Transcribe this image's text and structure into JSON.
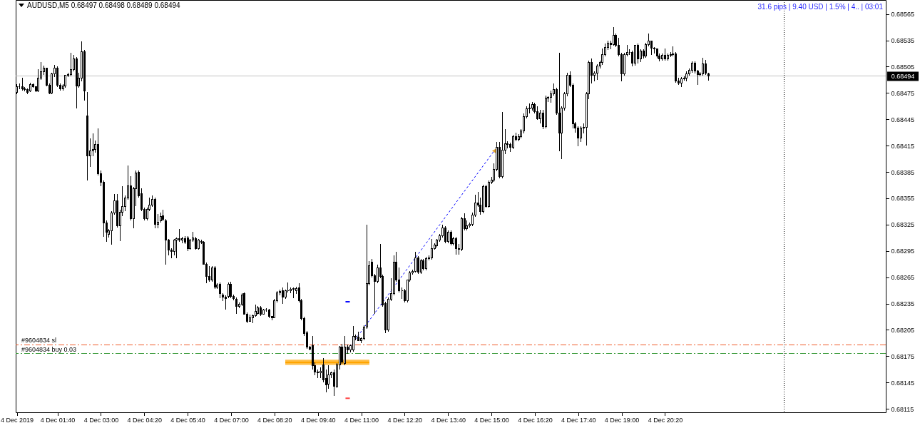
{
  "chart_data": {
    "type": "candlestick",
    "title": "AUDUSD,M5 0.68497 0.68498 0.68489 0.68494",
    "color": "#000000",
    "annotations": [
      "31.6 pips | 9.40 USD | 1.5% | 4.. | 03:01"
    ],
    "x": [
      "2019-12-04T00:25",
      "2019-12-04T00:30",
      "2019-12-04T00:35",
      "2019-12-04T00:40",
      "2019-12-04T00:45",
      "2019-12-04T00:50",
      "2019-12-04T00:55",
      "2019-12-04T01:00",
      "2019-12-04T01:05",
      "2019-12-04T01:10",
      "2019-12-04T01:15",
      "2019-12-04T01:20",
      "2019-12-04T01:25",
      "2019-12-04T01:30",
      "2019-12-04T01:35",
      "2019-12-04T01:40",
      "2019-12-04T01:45",
      "2019-12-04T01:50",
      "2019-12-04T01:55",
      "2019-12-04T02:00",
      "2019-12-04T02:05",
      "2019-12-04T02:10",
      "2019-12-04T02:15",
      "2019-12-04T02:20",
      "2019-12-04T02:25",
      "2019-12-04T02:30",
      "2019-12-04T02:35",
      "2019-12-04T02:40",
      "2019-12-04T02:45",
      "2019-12-04T02:50",
      "2019-12-04T02:55",
      "2019-12-04T03:00",
      "2019-12-04T03:05",
      "2019-12-04T03:10",
      "2019-12-04T03:15",
      "2019-12-04T03:20",
      "2019-12-04T03:25",
      "2019-12-04T03:30",
      "2019-12-04T03:35",
      "2019-12-04T03:40",
      "2019-12-04T03:45",
      "2019-12-04T03:50",
      "2019-12-04T03:55",
      "2019-12-04T04:00",
      "2019-12-04T04:05",
      "2019-12-04T04:10",
      "2019-12-04T04:15",
      "2019-12-04T04:20",
      "2019-12-04T04:25",
      "2019-12-04T04:30",
      "2019-12-04T04:35",
      "2019-12-04T04:40",
      "2019-12-04T04:45",
      "2019-12-04T04:50",
      "2019-12-04T04:55",
      "2019-12-04T05:00",
      "2019-12-04T05:05",
      "2019-12-04T05:10",
      "2019-12-04T05:15",
      "2019-12-04T05:20",
      "2019-12-04T05:25",
      "2019-12-04T05:30",
      "2019-12-04T05:35",
      "2019-12-04T05:40",
      "2019-12-04T05:45",
      "2019-12-04T05:50",
      "2019-12-04T05:55",
      "2019-12-04T06:00",
      "2019-12-04T06:05",
      "2019-12-04T06:10",
      "2019-12-04T06:15",
      "2019-12-04T06:20",
      "2019-12-04T06:25",
      "2019-12-04T06:30",
      "2019-12-04T06:35",
      "2019-12-04T06:40",
      "2019-12-04T06:45",
      "2019-12-04T06:50",
      "2019-12-04T06:55",
      "2019-12-04T07:00",
      "2019-12-04T07:05",
      "2019-12-04T07:10",
      "2019-12-04T07:15",
      "2019-12-04T07:20",
      "2019-12-04T07:25",
      "2019-12-04T07:30",
      "2019-12-04T07:35",
      "2019-12-04T07:40",
      "2019-12-04T07:45",
      "2019-12-04T07:50",
      "2019-12-04T07:55",
      "2019-12-04T08:00",
      "2019-12-04T08:05",
      "2019-12-04T08:10",
      "2019-12-04T08:15",
      "2019-12-04T08:20",
      "2019-12-04T08:25",
      "2019-12-04T08:30",
      "2019-12-04T08:35",
      "2019-12-04T08:40",
      "2019-12-04T08:45",
      "2019-12-04T08:50",
      "2019-12-04T08:55",
      "2019-12-04T09:00",
      "2019-12-04T09:05",
      "2019-12-04T09:10",
      "2019-12-04T09:15",
      "2019-12-04T09:20",
      "2019-12-04T09:25",
      "2019-12-04T09:30",
      "2019-12-04T09:35",
      "2019-12-04T09:40",
      "2019-12-04T09:45",
      "2019-12-04T09:50",
      "2019-12-04T09:55",
      "2019-12-04T10:00",
      "2019-12-04T10:05",
      "2019-12-04T10:10",
      "2019-12-04T10:15",
      "2019-12-04T10:20",
      "2019-12-04T10:25",
      "2019-12-04T10:30",
      "2019-12-04T10:35",
      "2019-12-04T10:40",
      "2019-12-04T10:45",
      "2019-12-04T10:50",
      "2019-12-04T10:55",
      "2019-12-04T11:00",
      "2019-12-04T11:05",
      "2019-12-04T11:10",
      "2019-12-04T11:15",
      "2019-12-04T11:20",
      "2019-12-04T11:25",
      "2019-12-04T11:30",
      "2019-12-04T11:35",
      "2019-12-04T11:40",
      "2019-12-04T11:45",
      "2019-12-04T11:50",
      "2019-12-04T11:55",
      "2019-12-04T12:00",
      "2019-12-04T12:05",
      "2019-12-04T12:10",
      "2019-12-04T12:15",
      "2019-12-04T12:20",
      "2019-12-04T12:25",
      "2019-12-04T12:30",
      "2019-12-04T12:35",
      "2019-12-04T12:40",
      "2019-12-04T12:45",
      "2019-12-04T12:50",
      "2019-12-04T12:55",
      "2019-12-04T13:00",
      "2019-12-04T13:05",
      "2019-12-04T13:10",
      "2019-12-04T13:15",
      "2019-12-04T13:20",
      "2019-12-04T13:25",
      "2019-12-04T13:30",
      "2019-12-04T13:35",
      "2019-12-04T13:40",
      "2019-12-04T13:45",
      "2019-12-04T13:50",
      "2019-12-04T13:55",
      "2019-12-04T14:00",
      "2019-12-04T14:05",
      "2019-12-04T14:10",
      "2019-12-04T14:15",
      "2019-12-04T14:20",
      "2019-12-04T14:25",
      "2019-12-04T14:30",
      "2019-12-04T14:35",
      "2019-12-04T14:40",
      "2019-12-04T14:45",
      "2019-12-04T14:50",
      "2019-12-04T14:55",
      "2019-12-04T15:00",
      "2019-12-04T15:05",
      "2019-12-04T15:10",
      "2019-12-04T15:15",
      "2019-12-04T15:20",
      "2019-12-04T15:25",
      "2019-12-04T15:30",
      "2019-12-04T15:35",
      "2019-12-04T15:40",
      "2019-12-04T15:45",
      "2019-12-04T15:50",
      "2019-12-04T15:55",
      "2019-12-04T16:00",
      "2019-12-04T16:05",
      "2019-12-04T16:10",
      "2019-12-04T16:15",
      "2019-12-04T16:20",
      "2019-12-04T16:25",
      "2019-12-04T16:30",
      "2019-12-04T16:35",
      "2019-12-04T16:40",
      "2019-12-04T16:45",
      "2019-12-04T16:50",
      "2019-12-04T16:55",
      "2019-12-04T17:00",
      "2019-12-04T17:05",
      "2019-12-04T17:10",
      "2019-12-04T17:15",
      "2019-12-04T17:20",
      "2019-12-04T17:25",
      "2019-12-04T17:30",
      "2019-12-04T17:35",
      "2019-12-04T17:40",
      "2019-12-04T17:45",
      "2019-12-04T17:50",
      "2019-12-04T17:55",
      "2019-12-04T18:00",
      "2019-12-04T18:05",
      "2019-12-04T18:10",
      "2019-12-04T18:15",
      "2019-12-04T18:20",
      "2019-12-04T18:25",
      "2019-12-04T18:30",
      "2019-12-04T18:35",
      "2019-12-04T18:40",
      "2019-12-04T18:45",
      "2019-12-04T18:50",
      "2019-12-04T18:55",
      "2019-12-04T19:00",
      "2019-12-04T19:05",
      "2019-12-04T19:10",
      "2019-12-04T19:15",
      "2019-12-04T19:20",
      "2019-12-04T19:25",
      "2019-12-04T19:30",
      "2019-12-04T19:35",
      "2019-12-04T19:40",
      "2019-12-04T19:45",
      "2019-12-04T19:50",
      "2019-12-04T19:55",
      "2019-12-04T20:00",
      "2019-12-04T20:05",
      "2019-12-04T20:10",
      "2019-12-04T20:15",
      "2019-12-04T20:20",
      "2019-12-04T20:25",
      "2019-12-04T20:30",
      "2019-12-04T20:35",
      "2019-12-04T20:40",
      "2019-12-04T20:45",
      "2019-12-04T20:50",
      "2019-12-04T20:55",
      "2019-12-04T21:00",
      "2019-12-04T21:05",
      "2019-12-04T21:10",
      "2019-12-04T21:15",
      "2019-12-04T21:20",
      "2019-12-04T21:25",
      "2019-12-04T21:30",
      "2019-12-04T21:35",
      "2019-12-04T21:40"
    ],
    "ohlc": [
      [
        0.68476,
        0.68485,
        0.68474,
        0.68482
      ],
      [
        0.68482,
        0.68486,
        0.68479,
        0.68482
      ],
      [
        0.68482,
        0.68492,
        0.68478,
        0.6848
      ],
      [
        0.6848,
        0.68482,
        0.68477,
        0.68479
      ],
      [
        0.68479,
        0.6848,
        0.68474,
        0.68476
      ],
      [
        0.68477,
        0.68487,
        0.68476,
        0.68485
      ],
      [
        0.68485,
        0.68486,
        0.68481,
        0.68482
      ],
      [
        0.68482,
        0.68483,
        0.68476,
        0.68477
      ],
      [
        0.68477,
        0.68502,
        0.68476,
        0.68492
      ],
      [
        0.68492,
        0.6851,
        0.6849,
        0.68499
      ],
      [
        0.68499,
        0.68506,
        0.68496,
        0.68503
      ],
      [
        0.68503,
        0.68504,
        0.68483,
        0.68484
      ],
      [
        0.68484,
        0.68486,
        0.68474,
        0.68475
      ],
      [
        0.68475,
        0.68498,
        0.68474,
        0.68497
      ],
      [
        0.68497,
        0.68507,
        0.68493,
        0.68503
      ],
      [
        0.68503,
        0.68505,
        0.68482,
        0.68484
      ],
      [
        0.68484,
        0.68486,
        0.68478,
        0.6848
      ],
      [
        0.6848,
        0.68485,
        0.68478,
        0.68483
      ],
      [
        0.68483,
        0.68496,
        0.68481,
        0.68495
      ],
      [
        0.68495,
        0.68498,
        0.68493,
        0.68496
      ],
      [
        0.68496,
        0.68521,
        0.68494,
        0.68502
      ],
      [
        0.68502,
        0.68518,
        0.685,
        0.68514
      ],
      [
        0.68514,
        0.68516,
        0.68457,
        0.68483
      ],
      [
        0.68483,
        0.68498,
        0.68481,
        0.68492
      ],
      [
        0.68492,
        0.68534,
        0.68488,
        0.68522
      ],
      [
        0.68522,
        0.68524,
        0.68466,
        0.68477
      ],
      [
        0.68449,
        0.68476,
        0.68375,
        0.68403
      ],
      [
        0.68403,
        0.68423,
        0.68391,
        0.68409
      ],
      [
        0.68409,
        0.68429,
        0.68403,
        0.68411
      ],
      [
        0.68411,
        0.68421,
        0.68407,
        0.68416
      ],
      [
        0.68416,
        0.68435,
        0.68381,
        0.68383
      ],
      [
        0.68383,
        0.68387,
        0.68369,
        0.68373
      ],
      [
        0.68373,
        0.68375,
        0.68311,
        0.68327
      ],
      [
        0.68327,
        0.6833,
        0.68305,
        0.68316
      ],
      [
        0.68314,
        0.6832,
        0.6831,
        0.68318
      ],
      [
        0.68318,
        0.6834,
        0.68302,
        0.68338
      ],
      [
        0.68338,
        0.6836,
        0.68336,
        0.68352
      ],
      [
        0.68352,
        0.6836,
        0.68322,
        0.68324
      ],
      [
        0.68324,
        0.68342,
        0.68306,
        0.68339
      ],
      [
        0.68339,
        0.68369,
        0.68335,
        0.68346
      ],
      [
        0.68346,
        0.68358,
        0.6834,
        0.68355
      ],
      [
        0.68355,
        0.68392,
        0.68353,
        0.68369
      ],
      [
        0.68369,
        0.6838,
        0.6833,
        0.68332
      ],
      [
        0.68332,
        0.68368,
        0.68321,
        0.68366
      ],
      [
        0.68366,
        0.68387,
        0.68346,
        0.68384
      ],
      [
        0.68385,
        0.68387,
        0.68356,
        0.68358
      ],
      [
        0.6836,
        0.68366,
        0.6834,
        0.68342
      ],
      [
        0.68342,
        0.68344,
        0.6833,
        0.68332
      ],
      [
        0.68332,
        0.68344,
        0.6833,
        0.68342
      ],
      [
        0.68342,
        0.68356,
        0.6834,
        0.68347
      ],
      [
        0.68347,
        0.68358,
        0.68345,
        0.68354
      ],
      [
        0.68354,
        0.68356,
        0.68321,
        0.68325
      ],
      [
        0.68325,
        0.68337,
        0.68321,
        0.68328
      ],
      [
        0.68329,
        0.68339,
        0.68327,
        0.68334
      ],
      [
        0.68335,
        0.68342,
        0.68329,
        0.68331
      ],
      [
        0.68329,
        0.68331,
        0.68279,
        0.68307
      ],
      [
        0.68307,
        0.68309,
        0.6829,
        0.68296
      ],
      [
        0.68296,
        0.68298,
        0.68287,
        0.68294
      ],
      [
        0.68294,
        0.68309,
        0.6829,
        0.68307
      ],
      [
        0.68307,
        0.6831,
        0.68287,
        0.68309
      ],
      [
        0.68309,
        0.6832,
        0.68305,
        0.68307
      ],
      [
        0.68307,
        0.68311,
        0.68304,
        0.68309
      ],
      [
        0.68309,
        0.68312,
        0.68303,
        0.68305
      ],
      [
        0.6831,
        0.68312,
        0.68295,
        0.68298
      ],
      [
        0.68298,
        0.68309,
        0.68296,
        0.68307
      ],
      [
        0.68307,
        0.68317,
        0.68305,
        0.6831
      ],
      [
        0.68309,
        0.68311,
        0.68296,
        0.68298
      ],
      [
        0.68298,
        0.68309,
        0.68296,
        0.68307
      ],
      [
        0.68306,
        0.68308,
        0.68303,
        0.68305
      ],
      [
        0.68305,
        0.68306,
        0.68279,
        0.6828
      ],
      [
        0.6828,
        0.68282,
        0.68258,
        0.68266
      ],
      [
        0.68266,
        0.68278,
        0.6826,
        0.68262
      ],
      [
        0.68262,
        0.68278,
        0.6826,
        0.68276
      ],
      [
        0.68276,
        0.68278,
        0.68252,
        0.68254
      ],
      [
        0.68254,
        0.68258,
        0.68252,
        0.68256
      ],
      [
        0.68257,
        0.68259,
        0.68241,
        0.68246
      ],
      [
        0.68245,
        0.68247,
        0.68238,
        0.68242
      ],
      [
        0.68242,
        0.68244,
        0.68228,
        0.68241
      ],
      [
        0.68243,
        0.68259,
        0.68241,
        0.68257
      ],
      [
        0.68257,
        0.6826,
        0.68241,
        0.68243
      ],
      [
        0.68243,
        0.68245,
        0.68239,
        0.68241
      ],
      [
        0.6824,
        0.68242,
        0.68223,
        0.68232
      ],
      [
        0.68232,
        0.68236,
        0.6823,
        0.68234
      ],
      [
        0.68234,
        0.68247,
        0.68232,
        0.68245
      ],
      [
        0.68246,
        0.68248,
        0.68223,
        0.68223
      ],
      [
        0.68223,
        0.68225,
        0.68213,
        0.68215
      ],
      [
        0.68215,
        0.68222,
        0.68214,
        0.68219
      ],
      [
        0.68219,
        0.68222,
        0.68213,
        0.68221
      ],
      [
        0.68221,
        0.68234,
        0.6822,
        0.68226
      ],
      [
        0.68224,
        0.68232,
        0.68222,
        0.6823
      ],
      [
        0.6823,
        0.68232,
        0.68221,
        0.68223
      ],
      [
        0.68223,
        0.68229,
        0.68222,
        0.68228
      ],
      [
        0.68228,
        0.6823,
        0.68226,
        0.68228
      ],
      [
        0.68228,
        0.68229,
        0.68218,
        0.6822
      ],
      [
        0.6822,
        0.68221,
        0.68216,
        0.68219
      ],
      [
        0.68219,
        0.6824,
        0.68218,
        0.68238
      ],
      [
        0.68238,
        0.68249,
        0.68236,
        0.68247
      ],
      [
        0.68247,
        0.68251,
        0.68244,
        0.68249
      ],
      [
        0.6825,
        0.68253,
        0.68235,
        0.68242
      ],
      [
        0.68242,
        0.68251,
        0.6824,
        0.6825
      ],
      [
        0.6825,
        0.68259,
        0.68248,
        0.6825
      ],
      [
        0.6825,
        0.68253,
        0.68247,
        0.68251
      ],
      [
        0.68251,
        0.68253,
        0.68241,
        0.68252
      ],
      [
        0.6825,
        0.68254,
        0.68246,
        0.68252
      ],
      [
        0.68253,
        0.68258,
        0.68236,
        0.68238
      ],
      [
        0.68238,
        0.6824,
        0.68216,
        0.68218
      ],
      [
        0.68218,
        0.6822,
        0.68198,
        0.68201
      ],
      [
        0.68202,
        0.68204,
        0.68183,
        0.68185
      ],
      [
        0.68185,
        0.68187,
        0.68182,
        0.68183
      ],
      [
        0.68187,
        0.68198,
        0.6816,
        0.68164
      ],
      [
        0.68164,
        0.68168,
        0.68153,
        0.68157
      ],
      [
        0.68157,
        0.6816,
        0.6815,
        0.68156
      ],
      [
        0.68156,
        0.68162,
        0.6815,
        0.68158
      ],
      [
        0.68165,
        0.68173,
        0.68145,
        0.68148
      ],
      [
        0.6815,
        0.6816,
        0.68134,
        0.68142
      ],
      [
        0.68143,
        0.68165,
        0.68138,
        0.68154
      ],
      [
        0.68154,
        0.68157,
        0.6815,
        0.68156
      ],
      [
        0.68156,
        0.6816,
        0.6813,
        0.68141
      ],
      [
        0.68141,
        0.68167,
        0.68139,
        0.68165
      ],
      [
        0.68165,
        0.68187,
        0.6816,
        0.68185
      ],
      [
        0.68185,
        0.68189,
        0.68166,
        0.68168
      ],
      [
        0.68167,
        0.68198,
        0.68165,
        0.68185
      ],
      [
        0.68185,
        0.68188,
        0.68178,
        0.68182
      ],
      [
        0.68182,
        0.68188,
        0.68179,
        0.68187
      ],
      [
        0.68182,
        0.68209,
        0.6818,
        0.68198
      ],
      [
        0.68198,
        0.682,
        0.68193,
        0.68197
      ],
      [
        0.68197,
        0.68203,
        0.68192,
        0.68193
      ],
      [
        0.68193,
        0.68196,
        0.6819,
        0.68195
      ],
      [
        0.68195,
        0.6821,
        0.68193,
        0.68208
      ],
      [
        0.68208,
        0.68325,
        0.68206,
        0.68258
      ],
      [
        0.68258,
        0.68283,
        0.68256,
        0.68278
      ],
      [
        0.68282,
        0.68286,
        0.68265,
        0.68267
      ],
      [
        0.68267,
        0.68269,
        0.68223,
        0.6826
      ],
      [
        0.6826,
        0.68279,
        0.68258,
        0.68276
      ],
      [
        0.68276,
        0.68303,
        0.68264,
        0.68266
      ],
      [
        0.68266,
        0.68268,
        0.68231,
        0.68233
      ],
      [
        0.68235,
        0.68237,
        0.68201,
        0.68205
      ],
      [
        0.68205,
        0.68242,
        0.68203,
        0.6824
      ],
      [
        0.6824,
        0.68264,
        0.68238,
        0.68246
      ],
      [
        0.68246,
        0.6829,
        0.68244,
        0.68282
      ],
      [
        0.68282,
        0.68294,
        0.6826,
        0.68262
      ],
      [
        0.68262,
        0.68276,
        0.68248,
        0.6825
      ],
      [
        0.6825,
        0.68253,
        0.6824,
        0.6825
      ],
      [
        0.6825,
        0.68252,
        0.68236,
        0.68238
      ],
      [
        0.68238,
        0.68262,
        0.68236,
        0.68262
      ],
      [
        0.68262,
        0.68272,
        0.6826,
        0.6827
      ],
      [
        0.6827,
        0.68274,
        0.68268,
        0.68272
      ],
      [
        0.68272,
        0.68294,
        0.6827,
        0.68287
      ],
      [
        0.68287,
        0.68289,
        0.68269,
        0.68271
      ],
      [
        0.68271,
        0.68286,
        0.68269,
        0.68284
      ],
      [
        0.68284,
        0.68286,
        0.68273,
        0.68275
      ],
      [
        0.68275,
        0.68288,
        0.68273,
        0.68286
      ],
      [
        0.68286,
        0.6829,
        0.68284,
        0.68287
      ],
      [
        0.68287,
        0.68309,
        0.68285,
        0.68298
      ],
      [
        0.68298,
        0.68304,
        0.68296,
        0.68302
      ],
      [
        0.68301,
        0.68309,
        0.68299,
        0.68307
      ],
      [
        0.68307,
        0.68314,
        0.68305,
        0.68312
      ],
      [
        0.68312,
        0.68325,
        0.6831,
        0.68321
      ],
      [
        0.68321,
        0.68323,
        0.68304,
        0.68306
      ],
      [
        0.68306,
        0.68318,
        0.68304,
        0.68316
      ],
      [
        0.68316,
        0.68318,
        0.68301,
        0.68303
      ],
      [
        0.68303,
        0.68311,
        0.68301,
        0.68309
      ],
      [
        0.68309,
        0.68311,
        0.68291,
        0.68298
      ],
      [
        0.68298,
        0.68303,
        0.68291,
        0.68297
      ],
      [
        0.68297,
        0.68334,
        0.68295,
        0.68332
      ],
      [
        0.68332,
        0.68338,
        0.68318,
        0.6832
      ],
      [
        0.6832,
        0.6833,
        0.68318,
        0.68324
      ],
      [
        0.68324,
        0.68327,
        0.68322,
        0.68325
      ],
      [
        0.68325,
        0.68339,
        0.68323,
        0.68336
      ],
      [
        0.68336,
        0.68359,
        0.68334,
        0.6835
      ],
      [
        0.6835,
        0.68362,
        0.68345,
        0.68347
      ],
      [
        0.68347,
        0.68356,
        0.68336,
        0.6834
      ],
      [
        0.6834,
        0.6837,
        0.68338,
        0.68368
      ],
      [
        0.68368,
        0.6837,
        0.68344,
        0.68346
      ],
      [
        0.68346,
        0.68375,
        0.68344,
        0.68373
      ],
      [
        0.68373,
        0.68379,
        0.68371,
        0.68376
      ],
      [
        0.68376,
        0.68395,
        0.68374,
        0.68388
      ],
      [
        0.68388,
        0.68419,
        0.68386,
        0.68413
      ],
      [
        0.68413,
        0.68419,
        0.68378,
        0.6838
      ],
      [
        0.6838,
        0.68453,
        0.68378,
        0.6841
      ],
      [
        0.6841,
        0.68434,
        0.68405,
        0.68417
      ],
      [
        0.68417,
        0.6842,
        0.68412,
        0.68416
      ],
      [
        0.68416,
        0.68418,
        0.68408,
        0.68413
      ],
      [
        0.68413,
        0.68427,
        0.68411,
        0.68425
      ],
      [
        0.68425,
        0.6843,
        0.6842,
        0.68422
      ],
      [
        0.68422,
        0.68428,
        0.6842,
        0.68425
      ],
      [
        0.68425,
        0.68434,
        0.68423,
        0.68432
      ],
      [
        0.68432,
        0.68452,
        0.68429,
        0.68448
      ],
      [
        0.68448,
        0.6846,
        0.68446,
        0.68457
      ],
      [
        0.68457,
        0.68463,
        0.68452,
        0.68458
      ],
      [
        0.68458,
        0.68465,
        0.68455,
        0.68462
      ],
      [
        0.68462,
        0.68464,
        0.68452,
        0.68454
      ],
      [
        0.68454,
        0.6846,
        0.68444,
        0.68446
      ],
      [
        0.68446,
        0.68456,
        0.6844,
        0.68452
      ],
      [
        0.68452,
        0.68456,
        0.68434,
        0.68437
      ],
      [
        0.68437,
        0.68472,
        0.68435,
        0.68469
      ],
      [
        0.68469,
        0.68471,
        0.68465,
        0.6847
      ],
      [
        0.6847,
        0.68478,
        0.68464,
        0.68474
      ],
      [
        0.68474,
        0.68486,
        0.68472,
        0.68479
      ],
      [
        0.68479,
        0.68481,
        0.6845,
        0.68452
      ],
      [
        0.68452,
        0.68521,
        0.68409,
        0.68429
      ],
      [
        0.68429,
        0.6846,
        0.684,
        0.68458
      ],
      [
        0.68458,
        0.68476,
        0.68455,
        0.68474
      ],
      [
        0.68474,
        0.68498,
        0.68471,
        0.68495
      ],
      [
        0.68495,
        0.685,
        0.68482,
        0.68484
      ],
      [
        0.68484,
        0.68486,
        0.68435,
        0.6844
      ],
      [
        0.6844,
        0.68442,
        0.6843,
        0.68435
      ],
      [
        0.68435,
        0.68437,
        0.68414,
        0.68424
      ],
      [
        0.68424,
        0.68437,
        0.68419,
        0.68435
      ],
      [
        0.68435,
        0.6844,
        0.68429,
        0.68436
      ],
      [
        0.68436,
        0.68476,
        0.68415,
        0.68474
      ],
      [
        0.68474,
        0.68512,
        0.68468,
        0.6851
      ],
      [
        0.6851,
        0.68514,
        0.68486,
        0.68495
      ],
      [
        0.68495,
        0.685,
        0.68488,
        0.68498
      ],
      [
        0.68498,
        0.68508,
        0.6849,
        0.68506
      ],
      [
        0.68506,
        0.68512,
        0.68503,
        0.6851
      ],
      [
        0.6851,
        0.68526,
        0.68507,
        0.68519
      ],
      [
        0.68519,
        0.68531,
        0.68517,
        0.68527
      ],
      [
        0.68527,
        0.68535,
        0.68524,
        0.68532
      ],
      [
        0.68532,
        0.68535,
        0.68525,
        0.6853
      ],
      [
        0.6853,
        0.6855,
        0.68529,
        0.68541
      ],
      [
        0.68541,
        0.68543,
        0.68527,
        0.68529
      ],
      [
        0.68529,
        0.68538,
        0.68517,
        0.68519
      ],
      [
        0.68519,
        0.68521,
        0.68488,
        0.68497
      ],
      [
        0.68497,
        0.68521,
        0.68495,
        0.68519
      ],
      [
        0.68519,
        0.6853,
        0.68517,
        0.68521
      ],
      [
        0.68521,
        0.68525,
        0.68518,
        0.68521
      ],
      [
        0.68521,
        0.68523,
        0.68505,
        0.68509
      ],
      [
        0.68509,
        0.6853,
        0.68506,
        0.68529
      ],
      [
        0.68529,
        0.68531,
        0.68509,
        0.68514
      ],
      [
        0.68514,
        0.68525,
        0.6851,
        0.68523
      ],
      [
        0.68523,
        0.68525,
        0.68514,
        0.68517
      ],
      [
        0.68517,
        0.68532,
        0.68515,
        0.6853
      ],
      [
        0.6853,
        0.68543,
        0.68528,
        0.68534
      ],
      [
        0.68534,
        0.68535,
        0.68518,
        0.68526
      ],
      [
        0.68526,
        0.68527,
        0.6852,
        0.68525
      ],
      [
        0.68525,
        0.68526,
        0.68514,
        0.68517
      ],
      [
        0.68517,
        0.6852,
        0.68511,
        0.68514
      ],
      [
        0.68514,
        0.6852,
        0.68512,
        0.68518
      ],
      [
        0.68518,
        0.68526,
        0.68512,
        0.68514
      ],
      [
        0.68514,
        0.6852,
        0.68512,
        0.68518
      ],
      [
        0.68518,
        0.68522,
        0.68516,
        0.68519
      ],
      [
        0.68519,
        0.68528,
        0.68517,
        0.6852
      ],
      [
        0.6852,
        0.68522,
        0.68487,
        0.68489
      ],
      [
        0.68489,
        0.68492,
        0.68484,
        0.68486
      ],
      [
        0.68486,
        0.68493,
        0.68482,
        0.68491
      ],
      [
        0.68491,
        0.68494,
        0.68489,
        0.68492
      ],
      [
        0.68492,
        0.685,
        0.68488,
        0.68497
      ],
      [
        0.68497,
        0.68503,
        0.68495,
        0.68501
      ],
      [
        0.68501,
        0.68511,
        0.68498,
        0.68509
      ],
      [
        0.68509,
        0.68511,
        0.68497,
        0.685
      ],
      [
        0.685,
        0.68501,
        0.68484,
        0.68496
      ],
      [
        0.68496,
        0.68499,
        0.68494,
        0.68497
      ],
      [
        0.68497,
        0.68515,
        0.68495,
        0.68508
      ],
      [
        0.68508,
        0.68513,
        0.68496,
        0.68498
      ],
      [
        0.68497,
        0.68498,
        0.68489,
        0.68494
      ]
    ],
    "series": [
      {
        "type": "line",
        "x": [
          "2019-12-04T08:40",
          "2019-12-04T11:15"
        ],
        "values": [
          0.68168,
          0.68168
        ],
        "lower": [
          0.68165,
          0.68165
        ],
        "upper": [
          0.68171,
          0.68171
        ],
        "color": "#ffa500",
        "line_style": "solid"
      },
      {
        "type": "line",
        "x": [
          "2019-12-04T10:30",
          "2019-12-04T15:05"
        ],
        "values": [
          0.68178,
          0.68409
        ],
        "color": "#0000ff",
        "line_style": "dashed"
      },
      {
        "type": "scatter",
        "x": [
          "2019-12-04T15:05"
        ],
        "values": [
          0.68409
        ],
        "color": "#e0a030",
        "marker": "triangle"
      },
      {
        "type": "line",
        "x": [
          "2019-12-04T10:31",
          "2019-12-04T10:39"
        ],
        "values": [
          0.68237,
          0.68237
        ],
        "color": "#0000ff",
        "line_style": "solid"
      },
      {
        "type": "line",
        "x": [
          "2019-12-04T10:31",
          "2019-12-04T10:39"
        ],
        "values": [
          0.68127,
          0.68127
        ],
        "color": "#ff4040",
        "line_style": "solid"
      }
    ],
    "ref_lines": [
      {
        "axis": "y",
        "value": 0.68494,
        "label": "0.68494",
        "color": "#c0c0c0",
        "line_style": "solid"
      },
      {
        "axis": "y",
        "value": 0.68188,
        "label": "#9604834 sl",
        "color": "#f05a28",
        "line_style": "dashed"
      },
      {
        "axis": "y",
        "value": 0.68178,
        "label": "#9604834 buy 0.03",
        "color": "#3c9c3c",
        "line_style": "dashed"
      },
      {
        "axis": "x",
        "value": "2019-12-05T00:00",
        "color": "#000000",
        "line_style": "dotted"
      }
    ],
    "xlim": [
      "2019-12-04T00:23",
      "2019-12-05T03:07"
    ],
    "xticks": [
      {
        "value": "2019-12-04T00:25",
        "label": "4 Dec 2019"
      },
      {
        "value": "2019-12-04T01:40",
        "label": "4 Dec 01:40"
      },
      {
        "value": "2019-12-04T03:00",
        "label": "4 Dec 03:00"
      },
      {
        "value": "2019-12-04T04:20",
        "label": "4 Dec 04:20"
      },
      {
        "value": "2019-12-04T05:40",
        "label": "4 Dec 05:40"
      },
      {
        "value": "2019-12-04T07:00",
        "label": "4 Dec 07:00"
      },
      {
        "value": "2019-12-04T08:20",
        "label": "4 Dec 08:20"
      },
      {
        "value": "2019-12-04T09:40",
        "label": "4 Dec 09:40"
      },
      {
        "value": "2019-12-04T11:00",
        "label": "4 Dec 11:00"
      },
      {
        "value": "2019-12-04T12:20",
        "label": "4 Dec 12:20"
      },
      {
        "value": "2019-12-04T13:40",
        "label": "4 Dec 13:40"
      },
      {
        "value": "2019-12-04T15:00",
        "label": "4 Dec 15:00"
      },
      {
        "value": "2019-12-04T16:20",
        "label": "4 Dec 16:20"
      },
      {
        "value": "2019-12-04T17:40",
        "label": "4 Dec 17:40"
      },
      {
        "value": "2019-12-04T19:00",
        "label": "4 Dec 19:00"
      },
      {
        "value": "2019-12-04T20:20",
        "label": "4 Dec 20:20"
      }
    ],
    "ylim": [
      0.68111,
      0.68581
    ],
    "yticks": [
      0.68115,
      0.68145,
      0.68175,
      0.68205,
      0.68235,
      0.68265,
      0.68295,
      0.68325,
      0.68355,
      0.68385,
      0.68415,
      0.68445,
      0.68475,
      0.68505,
      0.68535,
      0.68565
    ]
  }
}
